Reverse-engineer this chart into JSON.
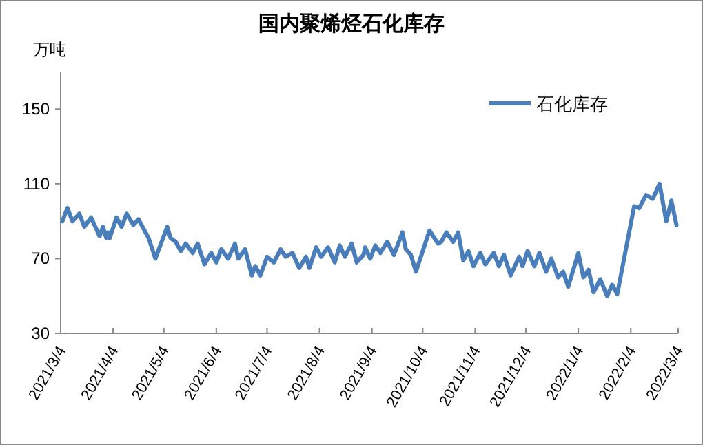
{
  "chart_data": {
    "type": "line",
    "title": "国内聚烯烃石化库存",
    "ylabel": "万吨",
    "xlim": [
      "2021-03-04",
      "2022-03-04"
    ],
    "ylim": [
      30,
      170
    ],
    "yticks": [
      30,
      70,
      110,
      150
    ],
    "xticks": [
      {
        "value": "2021-03-04",
        "label": "2021/3/4"
      },
      {
        "value": "2021-04-04",
        "label": "2021/4/4"
      },
      {
        "value": "2021-05-04",
        "label": "2021/5/4"
      },
      {
        "value": "2021-06-04",
        "label": "2021/6/4"
      },
      {
        "value": "2021-07-04",
        "label": "2021/7/4"
      },
      {
        "value": "2021-08-04",
        "label": "2021/8/4"
      },
      {
        "value": "2021-09-04",
        "label": "2021/9/4"
      },
      {
        "value": "2021-10-04",
        "label": "2021/10/4"
      },
      {
        "value": "2021-11-04",
        "label": "2021/11/4"
      },
      {
        "value": "2021-12-04",
        "label": "2021/12/4"
      },
      {
        "value": "2022-01-04",
        "label": "2022/1/4"
      },
      {
        "value": "2022-02-04",
        "label": "2022/2/4"
      },
      {
        "value": "2022-03-04",
        "label": "2022/3/4"
      }
    ],
    "grid": false,
    "legend": "top right",
    "marker": "none",
    "line_style": "solid",
    "x": [
      "2021-03-05",
      "2021-03-08",
      "2021-03-11",
      "2021-03-15",
      "2021-03-18",
      "2021-03-22",
      "2021-03-27",
      "2021-03-29",
      "2021-03-31",
      "2021-04-01",
      "2021-04-02",
      "2021-04-06",
      "2021-04-09",
      "2021-04-12",
      "2021-04-16",
      "2021-04-19",
      "2021-04-25",
      "2021-04-29",
      "2021-05-06",
      "2021-05-08",
      "2021-05-11",
      "2021-05-14",
      "2021-05-17",
      "2021-05-21",
      "2021-05-24",
      "2021-05-28",
      "2021-06-01",
      "2021-06-04",
      "2021-06-07",
      "2021-06-11",
      "2021-06-15",
      "2021-06-17",
      "2021-06-21",
      "2021-06-25",
      "2021-06-27",
      "2021-06-30",
      "2021-07-04",
      "2021-07-08",
      "2021-07-12",
      "2021-07-15",
      "2021-07-19",
      "2021-07-23",
      "2021-07-27",
      "2021-07-29",
      "2021-08-02",
      "2021-08-05",
      "2021-08-09",
      "2021-08-13",
      "2021-08-16",
      "2021-08-19",
      "2021-08-23",
      "2021-08-26",
      "2021-08-30",
      "2021-08-31",
      "2021-09-03",
      "2021-09-06",
      "2021-09-09",
      "2021-09-13",
      "2021-09-17",
      "2021-09-22",
      "2021-09-24",
      "2021-09-27",
      "2021-09-30",
      "2021-10-08",
      "2021-10-13",
      "2021-10-15",
      "2021-10-18",
      "2021-10-22",
      "2021-10-25",
      "2021-10-28",
      "2021-10-31",
      "2021-11-03",
      "2021-11-07",
      "2021-11-10",
      "2021-11-15",
      "2021-11-18",
      "2021-11-21",
      "2021-11-25",
      "2021-11-30",
      "2021-12-02",
      "2021-12-05",
      "2021-12-09",
      "2021-12-12",
      "2021-12-16",
      "2021-12-19",
      "2021-12-23",
      "2021-12-26",
      "2021-12-29",
      "2022-01-04",
      "2022-01-07",
      "2022-01-10",
      "2022-01-13",
      "2022-01-17",
      "2022-01-21",
      "2022-01-24",
      "2022-01-27",
      "2022-02-06",
      "2022-02-09",
      "2022-02-13",
      "2022-02-17",
      "2022-02-21",
      "2022-02-25",
      "2022-02-28",
      "2022-03-03"
    ],
    "series": [
      {
        "name": "石化库存",
        "color": "#4a7ebb",
        "values": [
          90,
          97,
          90,
          94,
          87,
          92,
          82,
          87,
          81,
          84,
          81,
          92,
          87,
          94,
          88,
          91,
          81,
          70,
          87,
          81,
          79,
          74,
          78,
          73,
          78,
          67,
          73,
          68,
          75,
          70,
          78,
          70,
          75,
          61,
          66,
          61,
          71,
          68,
          75,
          71,
          73,
          65,
          71,
          65,
          76,
          71,
          76,
          68,
          77,
          71,
          78,
          68,
          72,
          76,
          70,
          77,
          73,
          79,
          72,
          84,
          75,
          72,
          63,
          85,
          78,
          79,
          84,
          79,
          84,
          69,
          74,
          66,
          73,
          67,
          73,
          66,
          72,
          61,
          71,
          66,
          74,
          66,
          73,
          63,
          70,
          60,
          63,
          55,
          73,
          60,
          64,
          52,
          59,
          50,
          56,
          51,
          98,
          97,
          104,
          102,
          110,
          90,
          101,
          88
        ]
      }
    ]
  }
}
